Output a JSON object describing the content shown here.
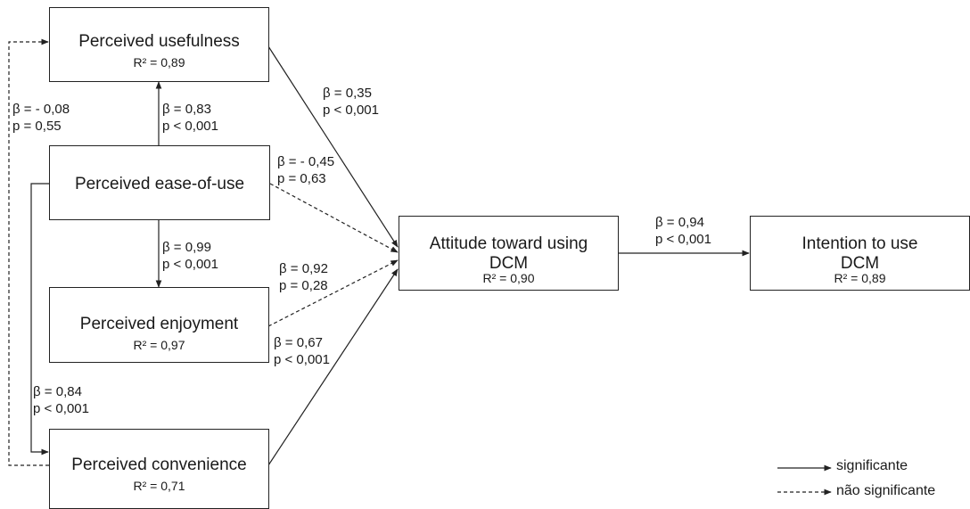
{
  "nodes": {
    "usefulness": {
      "title": "Perceived usefulness",
      "r2": "R² = 0,89"
    },
    "ease": {
      "title": "Perceived ease-of-use"
    },
    "enjoyment": {
      "title": "Perceived enjoyment",
      "r2": "R² = 0,97"
    },
    "convenience": {
      "title": "Perceived convenience",
      "r2": "R² = 0,71"
    },
    "attitude": {
      "title_line1": "Attitude toward using",
      "title_line2": "DCM",
      "r2": "R² = 0,90"
    },
    "intention": {
      "title_line1": "Intention to use",
      "title_line2": "DCM",
      "r2": "R² = 0,89"
    }
  },
  "paths": {
    "conv_to_useful": {
      "beta": "β = - 0,08",
      "p": "p = 0,55",
      "significant": false
    },
    "ease_to_useful": {
      "beta": "β = 0,83",
      "p": "p < 0,001",
      "significant": true
    },
    "useful_to_att": {
      "beta": "β = 0,35",
      "p": "p < 0,001",
      "significant": true
    },
    "ease_to_att": {
      "beta": "β = - 0,45",
      "p": "p = 0,63",
      "significant": false
    },
    "ease_to_enjoy": {
      "beta": "β = 0,99",
      "p": "p < 0,001",
      "significant": true
    },
    "enjoy_to_att": {
      "beta": "β = 0,92",
      "p": "p = 0,28",
      "significant": false
    },
    "conv_to_att": {
      "beta": "β = 0,67",
      "p": "p < 0,001",
      "significant": true
    },
    "ease_to_conv": {
      "beta": "β = 0,84",
      "p": "p < 0,001",
      "significant": true
    },
    "att_to_int": {
      "beta": "β = 0,94",
      "p": "p < 0,001",
      "significant": true
    }
  },
  "legend": {
    "solid": "significante",
    "dashed": "não significante"
  }
}
